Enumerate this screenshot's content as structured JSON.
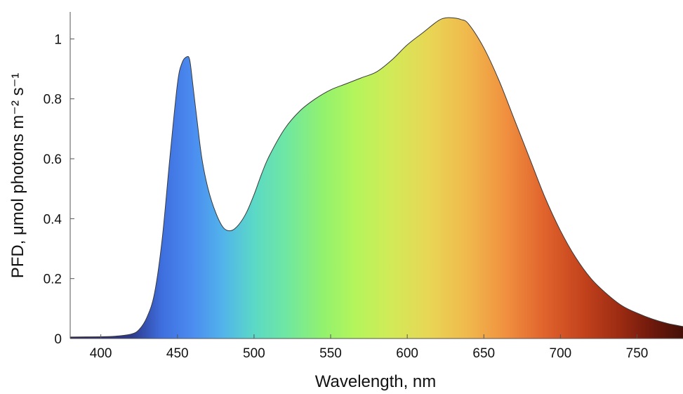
{
  "chart_data": {
    "type": "area",
    "xlabel": "Wavelength, nm",
    "ylabel": "PFD, μmol photons m⁻² s⁻¹",
    "xlim": [
      380,
      780
    ],
    "ylim": [
      0,
      1.09
    ],
    "x_ticks": [
      400,
      450,
      500,
      550,
      600,
      650,
      700,
      750
    ],
    "y_ticks": [
      0,
      0.2,
      0.4,
      0.6,
      0.8,
      1
    ],
    "y_tick_labels": [
      "0",
      "0.2",
      "0.4",
      "0.6",
      "0.8",
      "1"
    ],
    "grid": false,
    "legend": "none",
    "fill": "rainbow gradient by wavelength",
    "series": [
      {
        "x": [
          380,
          400,
          410,
          420,
          425,
          430,
          435,
          440,
          445,
          450,
          453,
          456,
          458,
          460,
          463,
          466,
          470,
          475,
          480,
          485,
          490,
          495,
          500,
          505,
          510,
          520,
          530,
          540,
          550,
          560,
          570,
          580,
          590,
          600,
          610,
          620,
          625,
          630,
          635,
          640,
          650,
          660,
          670,
          680,
          690,
          700,
          710,
          720,
          730,
          740,
          750,
          760,
          770,
          780
        ],
        "y": [
          0.005,
          0.006,
          0.008,
          0.015,
          0.03,
          0.07,
          0.15,
          0.33,
          0.6,
          0.85,
          0.92,
          0.94,
          0.93,
          0.85,
          0.72,
          0.6,
          0.5,
          0.42,
          0.37,
          0.36,
          0.38,
          0.42,
          0.48,
          0.55,
          0.61,
          0.7,
          0.76,
          0.8,
          0.83,
          0.85,
          0.87,
          0.89,
          0.93,
          0.98,
          1.02,
          1.06,
          1.07,
          1.07,
          1.065,
          1.05,
          0.97,
          0.86,
          0.73,
          0.6,
          0.47,
          0.36,
          0.27,
          0.2,
          0.15,
          0.11,
          0.085,
          0.065,
          0.05,
          0.04
        ]
      }
    ],
    "gradient_colors": [
      {
        "wl": 380,
        "color": "#2a1f5a"
      },
      {
        "wl": 420,
        "color": "#2d3a8c"
      },
      {
        "wl": 440,
        "color": "#3f6fdf"
      },
      {
        "wl": 460,
        "color": "#4b8cf0"
      },
      {
        "wl": 480,
        "color": "#52b4ea"
      },
      {
        "wl": 500,
        "color": "#5bd9c6"
      },
      {
        "wl": 520,
        "color": "#6ee6a4"
      },
      {
        "wl": 545,
        "color": "#92f16e"
      },
      {
        "wl": 565,
        "color": "#b3f55c"
      },
      {
        "wl": 590,
        "color": "#d2ea57"
      },
      {
        "wl": 615,
        "color": "#e9d555"
      },
      {
        "wl": 640,
        "color": "#f0b84c"
      },
      {
        "wl": 665,
        "color": "#f08f3f"
      },
      {
        "wl": 690,
        "color": "#e0622c"
      },
      {
        "wl": 715,
        "color": "#c3421c"
      },
      {
        "wl": 740,
        "color": "#9a2a12"
      },
      {
        "wl": 760,
        "color": "#6e190c"
      },
      {
        "wl": 780,
        "color": "#441008"
      }
    ]
  }
}
